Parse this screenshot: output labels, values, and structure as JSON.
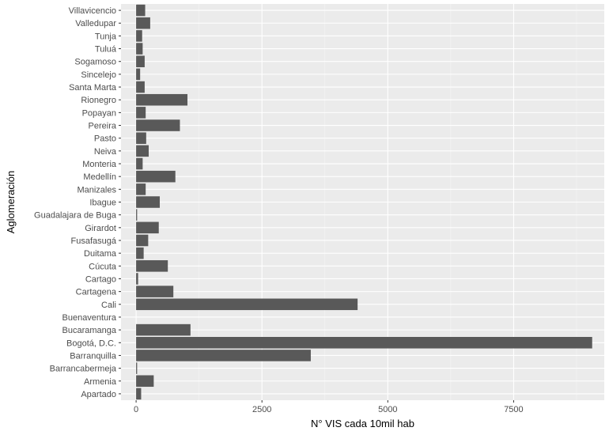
{
  "chart_data": {
    "type": "bar",
    "orientation": "horizontal",
    "xlabel": "N° VIS cada 10mil hab",
    "ylabel": "Aglomeración",
    "xlim": [
      -300,
      9300
    ],
    "xticks": [
      0,
      2500,
      5000,
      7500
    ],
    "xtick_labels": [
      "0",
      "2500",
      "5000",
      "7500"
    ],
    "grid": true,
    "legend": "none",
    "categories": [
      "Villavicencio",
      "Valledupar",
      "Tunja",
      "Tuluá",
      "Sogamoso",
      "Sincelejo",
      "Santa Marta",
      "Rionegro",
      "Popayan",
      "Pereira",
      "Pasto",
      "Neiva",
      "Monteria",
      "Medellín",
      "Manizales",
      "Ibague",
      "Guadalajara de Buga",
      "Girardot",
      "Fusafasugá",
      "Duitama",
      "Cúcuta",
      "Cartago",
      "Cartagena",
      "Cali",
      "Buenaventura",
      "Bucaramanga",
      "Bogotá, D.C.",
      "Barranquilla",
      "Barrancabermeja",
      "Armenia",
      "Apartado"
    ],
    "values": [
      180,
      280,
      120,
      130,
      170,
      80,
      170,
      1020,
      190,
      870,
      200,
      250,
      130,
      780,
      190,
      470,
      20,
      450,
      240,
      150,
      630,
      40,
      740,
      4400,
      0,
      1080,
      9060,
      3470,
      20,
      350,
      100
    ],
    "colors": {
      "bar": "#595959",
      "panel": "#ebebeb",
      "grid_major": "#ffffff",
      "grid_minor": "#f5f5f5",
      "tick_text": "#4d4d4d"
    }
  }
}
